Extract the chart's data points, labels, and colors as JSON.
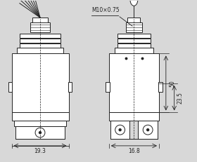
{
  "bg_color": "#d8d8d8",
  "line_color": "#222222",
  "fig_width": 2.8,
  "fig_height": 2.31,
  "dpi": 100,
  "label_19_3": "19.3",
  "label_16_8": "16.8",
  "label_50": "50",
  "label_23_5": "23.5",
  "label_M10": "M10×0.75"
}
